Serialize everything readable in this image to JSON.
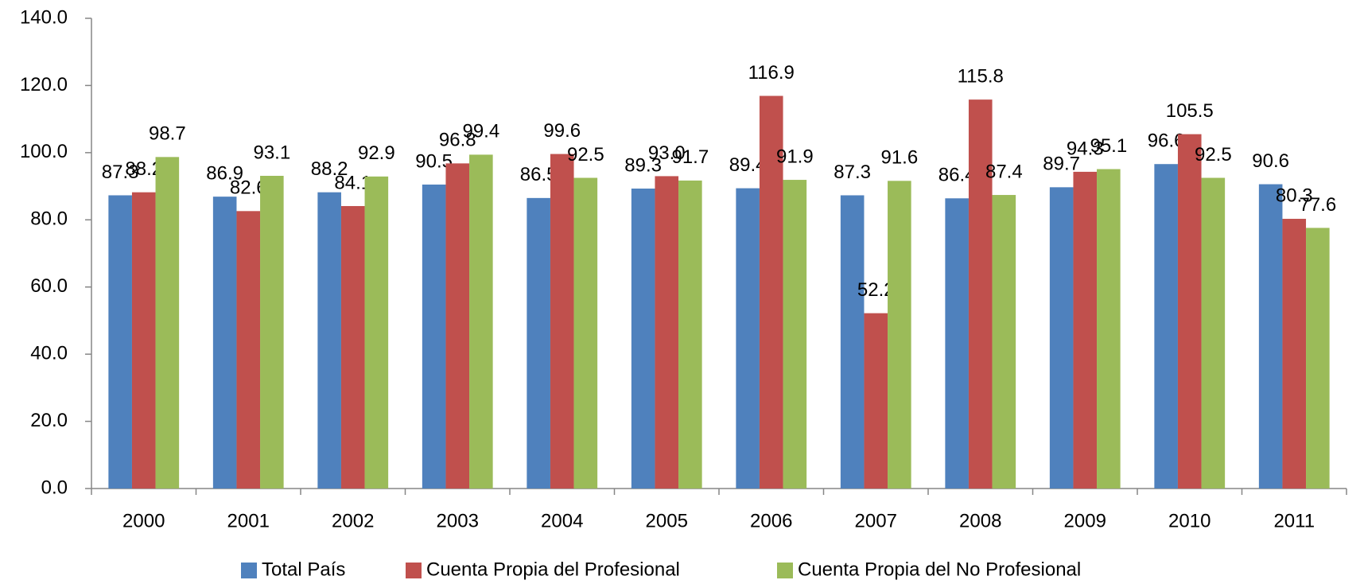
{
  "chart_data": {
    "type": "bar",
    "categories": [
      "2000",
      "2001",
      "2002",
      "2003",
      "2004",
      "2005",
      "2006",
      "2007",
      "2008",
      "2009",
      "2010",
      "2011"
    ],
    "series": [
      {
        "name": "Total País",
        "color": "#4f81bd",
        "values": [
          87.3,
          86.9,
          88.2,
          90.5,
          86.5,
          89.3,
          89.4,
          87.3,
          86.4,
          89.7,
          96.6,
          90.6
        ],
        "value_labels": [
          "87.3",
          "86.9",
          "88.2",
          "90.5",
          "86.5",
          "89.3",
          "89.4",
          "87.3",
          "86.4",
          "89.7",
          "96.6",
          "90.6"
        ]
      },
      {
        "name": "Cuenta Propia del Profesional",
        "color": "#c0504d",
        "values": [
          88.2,
          82.6,
          84.1,
          96.8,
          99.6,
          93.0,
          116.9,
          52.2,
          115.8,
          94.3,
          105.5,
          80.3
        ],
        "value_labels": [
          "88.2",
          "82.6",
          "84.1",
          "96.8",
          "99.6",
          "93.0",
          "116.9",
          "52.2",
          "115.8",
          "94.3",
          "105.5",
          "80.3"
        ]
      },
      {
        "name": "Cuenta Propia del No Profesional",
        "color": "#9bbb59",
        "values": [
          98.7,
          93.1,
          92.9,
          99.4,
          92.5,
          91.7,
          91.9,
          91.6,
          87.4,
          95.1,
          92.5,
          77.6
        ],
        "value_labels": [
          "98.7",
          "93.1",
          "92.9",
          "99.4",
          "92.5",
          "91.7",
          "91.9",
          "91.6",
          "87.4",
          "95.1",
          "92.5",
          "77.6"
        ]
      }
    ],
    "ylim": [
      0,
      140
    ],
    "yticks": [
      {
        "value": 0,
        "label": "0.0"
      },
      {
        "value": 20,
        "label": "20.0"
      },
      {
        "value": 40,
        "label": "40.0"
      },
      {
        "value": 60,
        "label": "60.0"
      },
      {
        "value": 80,
        "label": "80.0"
      },
      {
        "value": 100,
        "label": "100.0"
      },
      {
        "value": 120,
        "label": "120.0"
      },
      {
        "value": 140,
        "label": "140.0"
      }
    ],
    "grid": false,
    "legend": "bottom"
  }
}
